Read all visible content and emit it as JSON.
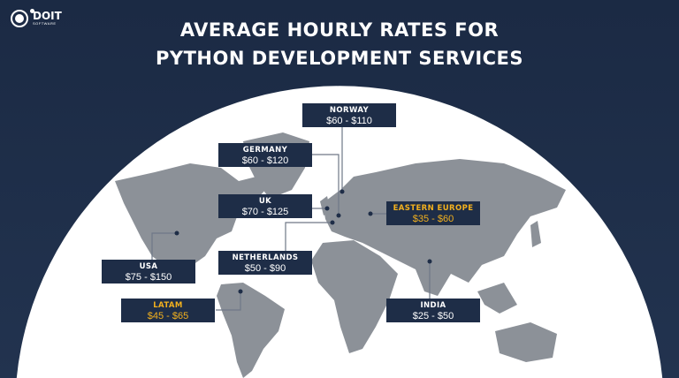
{
  "logo": {
    "name": "DOIT",
    "sub": "SOFTWARE"
  },
  "title": {
    "line1": "AVERAGE HOURLY RATES FOR",
    "line2": "PYTHON DEVELOPMENT SERVICES"
  },
  "colors": {
    "background": "#1b2a44",
    "globe": "#ffffff",
    "land": "#8c9198",
    "label_bg": "#1e2d47",
    "highlight": "#f2b01e"
  },
  "regions": [
    {
      "name": "NORWAY",
      "rate": "$60 - $110",
      "highlight": false
    },
    {
      "name": "GERMANY",
      "rate": "$60 - $120",
      "highlight": false
    },
    {
      "name": "UK",
      "rate": "$70 - $125",
      "highlight": false
    },
    {
      "name": "EASTERN EUROPE",
      "rate": "$35 - $60",
      "highlight": true
    },
    {
      "name": "NETHERLANDS",
      "rate": "$50 - $90",
      "highlight": false
    },
    {
      "name": "USA",
      "rate": "$75 - $150",
      "highlight": false
    },
    {
      "name": "LATAM",
      "rate": "$45 - $65",
      "highlight": true
    },
    {
      "name": "INDIA",
      "rate": "$25 - $50",
      "highlight": false
    }
  ]
}
